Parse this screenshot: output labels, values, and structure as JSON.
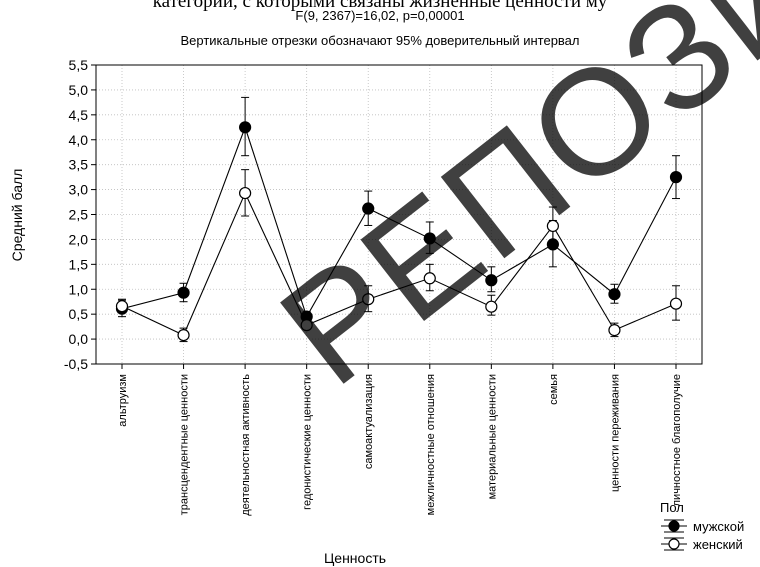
{
  "page": {
    "top_text": "категории, с которыми связаны жизненные ценности му",
    "watermark": "РЕПОЗИТ"
  },
  "chart_data": {
    "type": "line",
    "title": "F(9, 2367)=16,02, p=0,00001",
    "subtitle": "Вертикальные отрезки обозначают 95% доверительный интервал",
    "xlabel": "Ценность",
    "ylabel": "Средний балл",
    "ylim": [
      -0.5,
      5.5
    ],
    "yticks": [
      "-0,5",
      "0,0",
      "0,5",
      "1,0",
      "1,5",
      "2,0",
      "2,5",
      "3,0",
      "3,5",
      "4,0",
      "4,5",
      "5,0",
      "5,5"
    ],
    "grid": true,
    "legend_title": "Пол",
    "legend_position": "bottom-right",
    "categories": [
      "альтруизм",
      "трансцендентные ценности",
      "деятельностная активность",
      "гедонистические ценности",
      "самоактуализация",
      "межличностные отношения",
      "материальные ценности",
      "семья",
      "ценности переживания",
      "личностное благополучие"
    ],
    "series": [
      {
        "name": "мужской",
        "marker": "filled-circle",
        "color": "#000000",
        "values": [
          0.61,
          0.93,
          4.25,
          0.45,
          2.62,
          2.02,
          1.18,
          1.9,
          0.9,
          3.25
        ],
        "ci_low": [
          0.45,
          0.75,
          3.68,
          0.35,
          2.28,
          1.72,
          0.95,
          1.45,
          0.72,
          2.82
        ],
        "ci_high": [
          0.78,
          1.12,
          4.85,
          0.55,
          2.97,
          2.35,
          1.45,
          2.38,
          1.1,
          3.68
        ]
      },
      {
        "name": "женский",
        "marker": "open-circle",
        "color": "#000000",
        "values": [
          0.66,
          0.08,
          2.93,
          0.28,
          0.8,
          1.22,
          0.65,
          2.27,
          0.18,
          0.71
        ],
        "ci_low": [
          0.55,
          -0.05,
          2.47,
          0.22,
          0.55,
          0.97,
          0.48,
          1.88,
          0.05,
          0.38
        ],
        "ci_high": [
          0.8,
          0.22,
          3.4,
          0.35,
          1.07,
          1.5,
          0.88,
          2.65,
          0.32,
          1.07
        ]
      }
    ]
  }
}
